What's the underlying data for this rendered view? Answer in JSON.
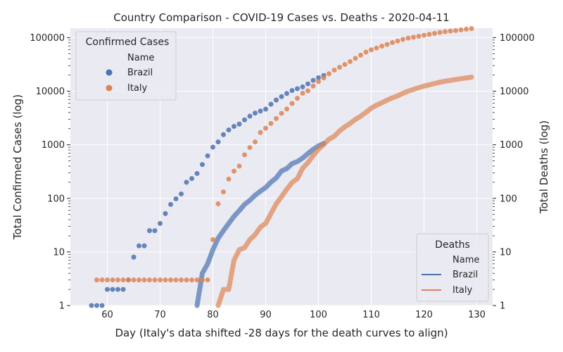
{
  "chart_data": {
    "type": "scatter",
    "title": "Country Comparison - COVID-19 Cases vs. Deaths - 2020-04-11",
    "xlabel": "Day (Italy's data shifted -28 days for the death curves to align)",
    "ylabel_left": "Total Confirmed Cases (log)",
    "ylabel_right": "Total Deaths (log)",
    "x_range": [
      53,
      133
    ],
    "y_range_left": [
      1,
      150000
    ],
    "y_range_right": [
      1,
      150000
    ],
    "y_scale": "log",
    "grid": true,
    "x_ticks": [
      60,
      70,
      80,
      90,
      100,
      110,
      120,
      130
    ],
    "y_ticks": [
      1,
      10,
      100,
      1000,
      10000,
      100000
    ],
    "legend_cases": {
      "title": "Confirmed Cases",
      "subtitle": "Name",
      "entries": [
        "Brazil",
        "Italy"
      ],
      "placement": "top-left"
    },
    "legend_deaths": {
      "title": "Deaths",
      "subtitle": "Name",
      "entries": [
        "Brazil",
        "Italy"
      ],
      "placement": "bottom-right"
    },
    "colors": {
      "Brazil": "#4c72b0",
      "Italy": "#dd8452",
      "background": "#eaeaf2",
      "grid": "#ffffff"
    },
    "cases": [
      {
        "name": "Brazil",
        "x": [
          57,
          58,
          59,
          60,
          61,
          62,
          63,
          64,
          65,
          66,
          67,
          68,
          69,
          70,
          71,
          72,
          73,
          74,
          75,
          76,
          77,
          78,
          79,
          80,
          81,
          82,
          83,
          84,
          85,
          86,
          87,
          88,
          89,
          90,
          91,
          92,
          93,
          94,
          95,
          96,
          97,
          98,
          99,
          100,
          101
        ],
        "y": [
          1,
          1,
          1,
          2,
          2,
          2,
          2,
          3,
          8,
          13,
          13,
          25,
          25,
          34,
          52,
          77,
          98,
          121,
          200,
          234,
          291,
          428,
          621,
          904,
          1128,
          1546,
          1891,
          2201,
          2433,
          2915,
          3417,
          3904,
          4256,
          4630,
          5717,
          6836,
          7910,
          9056,
          10278,
          11130,
          12056,
          13717,
          15927,
          17857,
          19638
        ]
      },
      {
        "name": "Italy",
        "x": [
          58,
          59,
          60,
          61,
          62,
          63,
          64,
          65,
          66,
          67,
          68,
          69,
          70,
          71,
          72,
          73,
          74,
          75,
          76,
          77,
          78,
          79,
          80,
          81,
          82,
          83,
          84,
          85,
          86,
          87,
          88,
          89,
          90,
          91,
          92,
          93,
          94,
          95,
          96,
          97,
          98,
          99,
          100,
          101,
          102,
          103,
          104,
          105,
          106,
          107,
          108,
          109,
          110,
          111,
          112,
          113,
          114,
          115,
          116,
          117,
          118,
          119,
          120,
          121,
          122,
          123,
          124,
          125,
          126,
          127,
          128,
          129
        ],
        "y": [
          3,
          3,
          3,
          3,
          3,
          3,
          3,
          3,
          3,
          3,
          3,
          3,
          3,
          3,
          3,
          3,
          3,
          3,
          3,
          3,
          3,
          3,
          17,
          79,
          132,
          229,
          322,
          400,
          650,
          888,
          1128,
          1694,
          2036,
          2502,
          3089,
          3858,
          4636,
          5883,
          7375,
          9172,
          10149,
          12462,
          15113,
          17660,
          21157,
          24747,
          27980,
          31506,
          35713,
          41035,
          47021,
          53578,
          59138,
          63927,
          69176,
          74386,
          80589,
          86498,
          92472,
          97689,
          101739,
          105792,
          110574,
          115242,
          119827,
          124632,
          128948,
          132547,
          135586,
          139422,
          143626,
          147577
        ]
      }
    ],
    "deaths": [
      {
        "name": "Brazil",
        "x": [
          77,
          78,
          79,
          80,
          81,
          82,
          83,
          84,
          85,
          86,
          87,
          88,
          89,
          90,
          91,
          92,
          93,
          94,
          95,
          96,
          97,
          98,
          99,
          100,
          101
        ],
        "y": [
          1,
          4,
          6,
          11,
          18,
          25,
          34,
          46,
          59,
          77,
          92,
          114,
          136,
          159,
          201,
          240,
          324,
          359,
          445,
          486,
          564,
          686,
          819,
          950,
          1057
        ]
      },
      {
        "name": "Italy",
        "x": [
          81,
          82,
          83,
          84,
          85,
          86,
          87,
          88,
          89,
          90,
          91,
          92,
          93,
          94,
          95,
          96,
          97,
          98,
          99,
          100,
          101,
          102,
          103,
          104,
          105,
          106,
          107,
          108,
          109,
          110,
          111,
          112,
          113,
          114,
          115,
          116,
          117,
          118,
          119,
          120,
          121,
          122,
          123,
          124,
          125,
          126,
          127,
          128,
          129
        ],
        "y": [
          1,
          2,
          2,
          7,
          11,
          12,
          17,
          21,
          29,
          34,
          52,
          79,
          107,
          148,
          197,
          233,
          366,
          463,
          631,
          827,
          1016,
          1266,
          1441,
          1809,
          2158,
          2503,
          2978,
          3405,
          4032,
          4825,
          5476,
          6077,
          6820,
          7503,
          8165,
          9134,
          10023,
          10779,
          11591,
          12428,
          13155,
          13915,
          14681,
          15362,
          15887,
          16523,
          17127,
          17669,
          18279
        ]
      }
    ]
  }
}
